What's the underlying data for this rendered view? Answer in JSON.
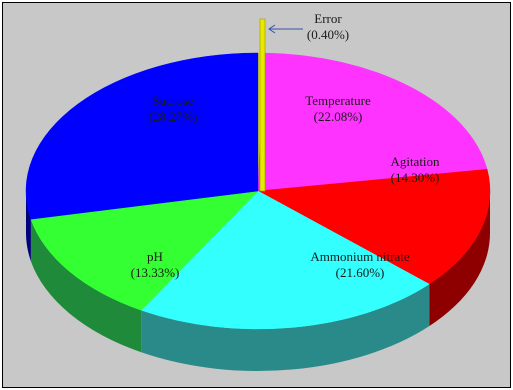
{
  "chart_data": {
    "type": "pie",
    "title": "",
    "slices": [
      {
        "label": "Error",
        "value_text": "(0.40%)",
        "value": 0.4,
        "color": "#e8e800",
        "side": "#9a9a00"
      },
      {
        "label": "Temperature",
        "value_text": "(22.08%)",
        "value": 22.08,
        "color": "#ff33ff",
        "side": "#a31fa3"
      },
      {
        "label": "Agitation",
        "value_text": "(14.30%)",
        "value": 14.3,
        "color": "#ff0000",
        "side": "#8e0000"
      },
      {
        "label": "Ammonium nitrate",
        "value_text": "(21.60%)",
        "value": 21.6,
        "color": "#33ffff",
        "side": "#2a8a8a"
      },
      {
        "label": "pH",
        "value_text": "(13.33%)",
        "value": 13.33,
        "color": "#33ff33",
        "side": "#1f8a3a"
      },
      {
        "label": "Sucrose",
        "value_text": "(28.27%)",
        "value": 28.27,
        "color": "#0000ff",
        "side": "#00007a"
      }
    ],
    "style": "3d-exploded",
    "legend": "none"
  }
}
